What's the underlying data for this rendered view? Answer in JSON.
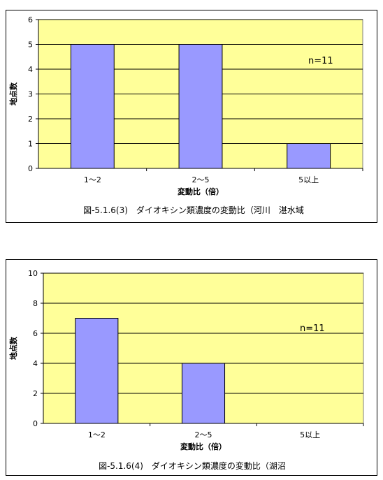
{
  "chart_data": [
    {
      "type": "bar",
      "categories": [
        "1〜2",
        "2〜5",
        "5以上"
      ],
      "values": [
        5,
        5,
        1
      ],
      "ylim": [
        0,
        6
      ],
      "yticks": [
        0,
        1,
        2,
        3,
        4,
        5,
        6
      ],
      "xlabel": "変動比（倍）",
      "ylabel": "地点数",
      "annotation": "n=11",
      "caption": "図-5.1.6(3)　ダイオキシン類濃度の変動比（河川　湛水域",
      "grid": true,
      "colors": {
        "plot_bg": "#ffff99",
        "bar": "#9999ff",
        "bar_stroke": "#000000"
      }
    },
    {
      "type": "bar",
      "categories": [
        "1〜2",
        "2〜5",
        "5以上"
      ],
      "values": [
        7,
        4,
        0
      ],
      "ylim": [
        0,
        10
      ],
      "yticks": [
        0,
        2,
        4,
        6,
        8,
        10
      ],
      "xlabel": "変動比（倍）",
      "ylabel": "地点数",
      "annotation": "n=11",
      "caption": "図-5.1.6(4)　ダイオキシン類濃度の変動比（湖沼",
      "grid": true,
      "colors": {
        "plot_bg": "#ffff99",
        "bar": "#9999ff",
        "bar_stroke": "#000000"
      }
    }
  ]
}
